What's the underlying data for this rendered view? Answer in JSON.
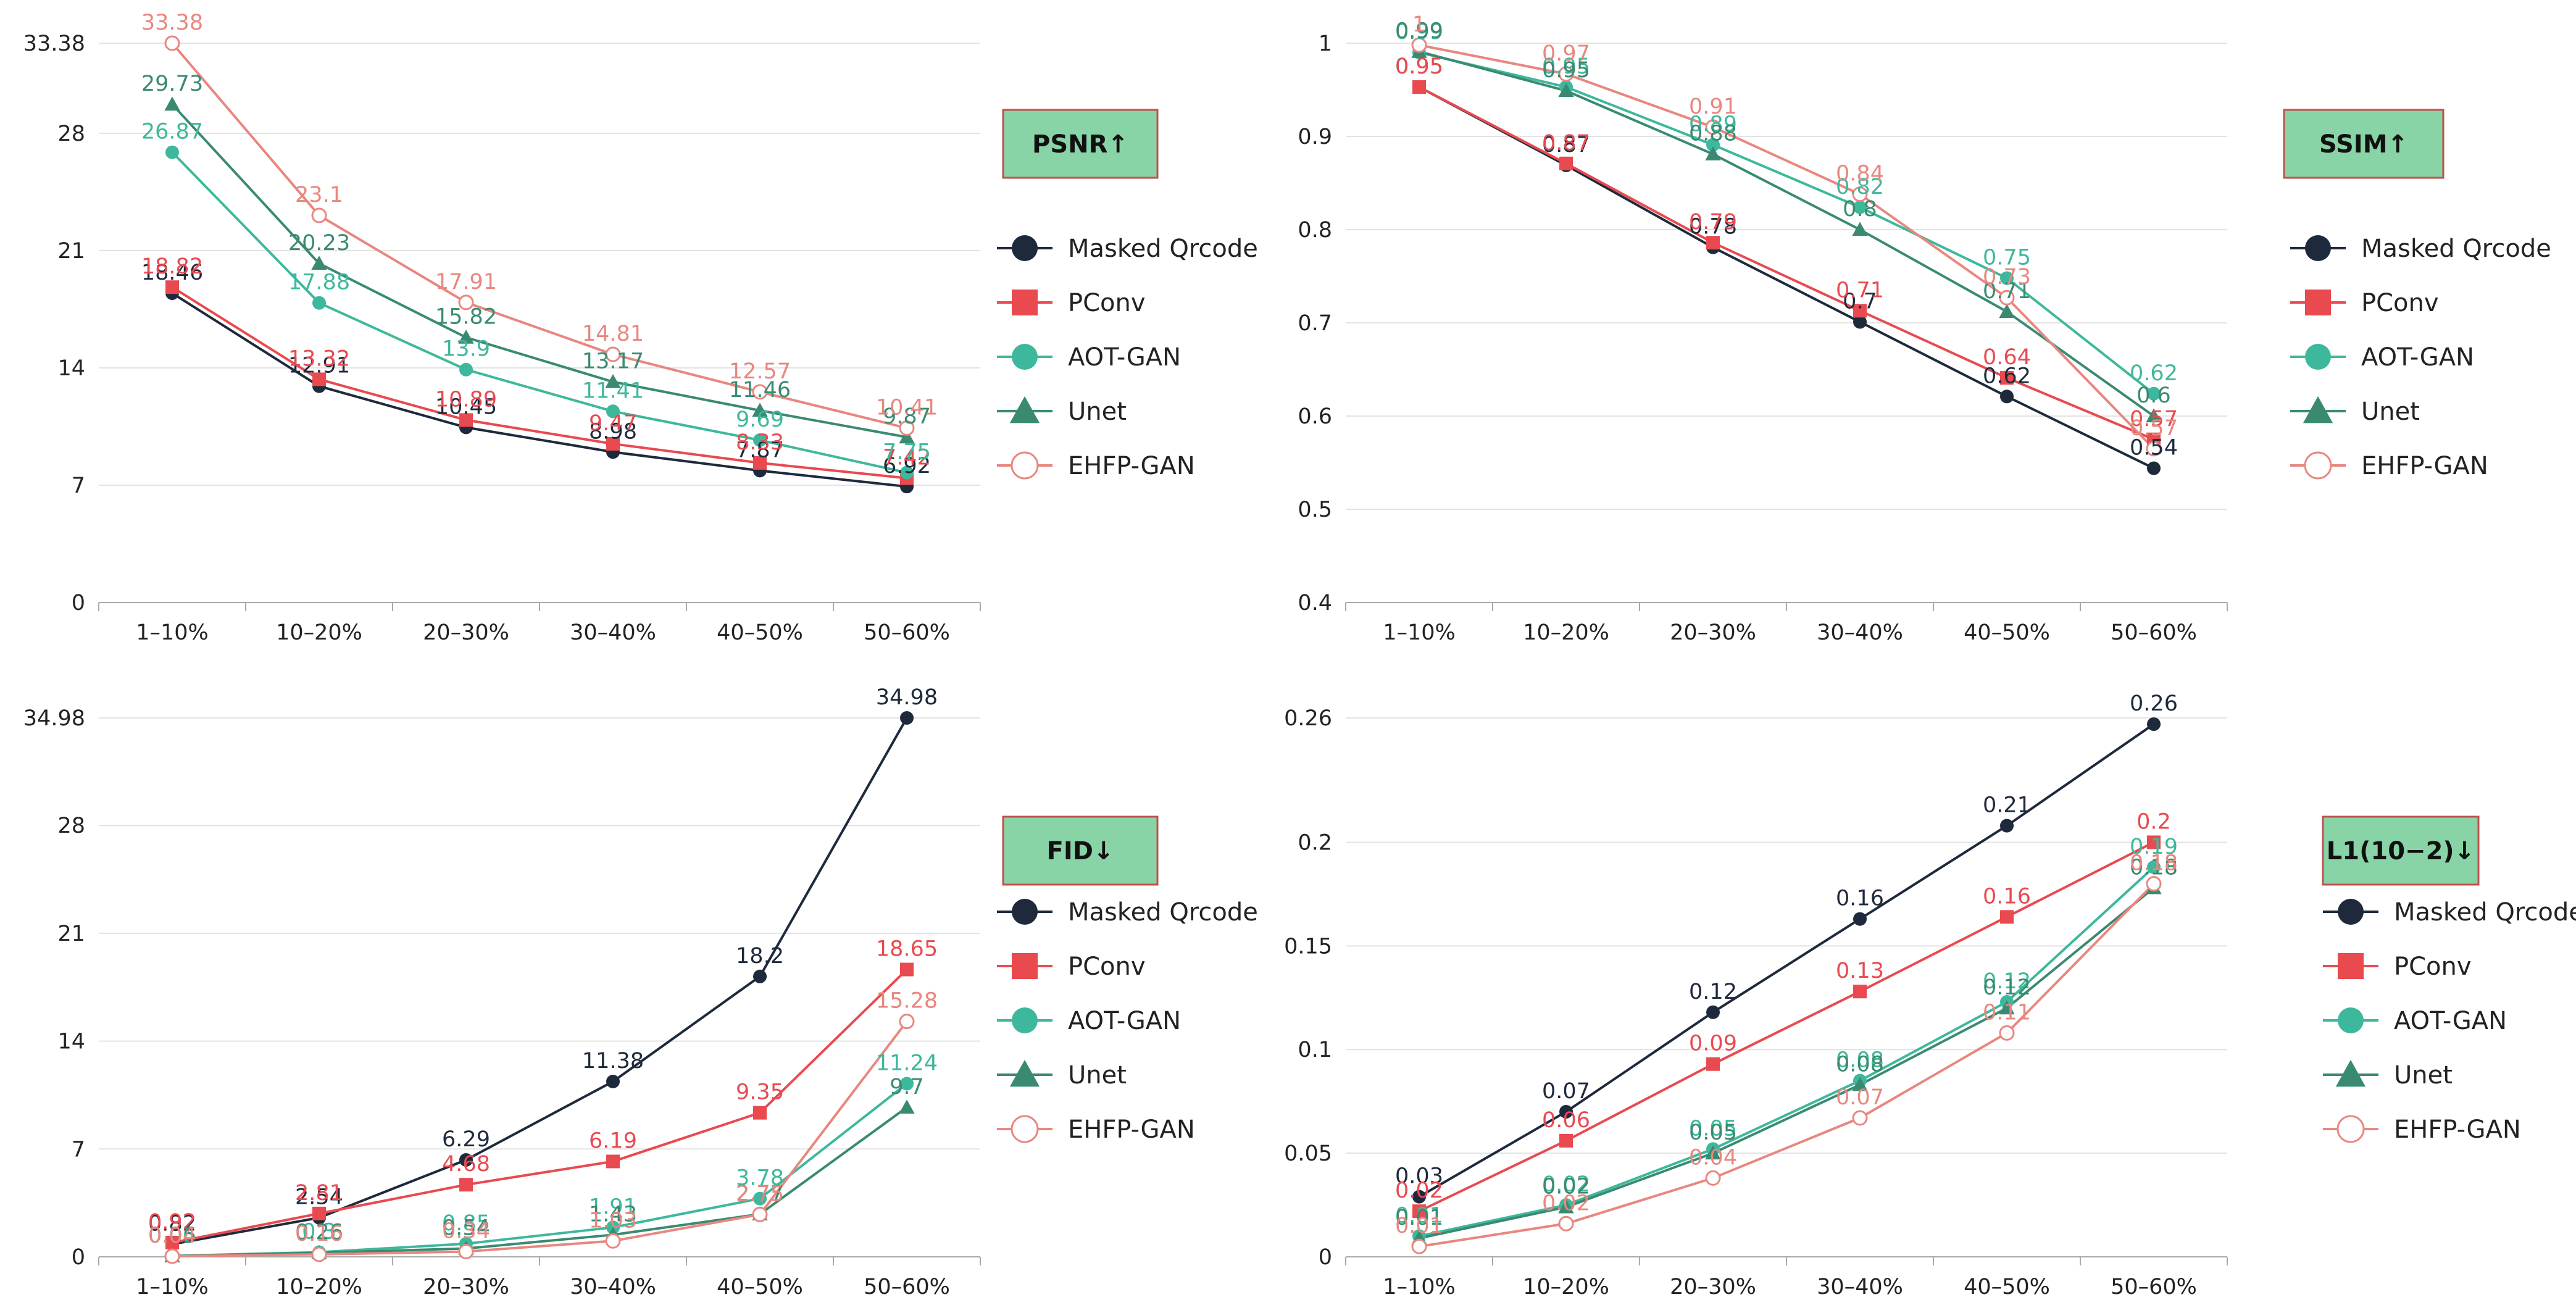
{
  "colors": {
    "Masked Qrcode": "#1e2a3c",
    "PConv": "#e84a50",
    "AOT-GAN": "#3eb89c",
    "Unet": "#3a8a72",
    "EHFP-GAN": "#e8877f",
    "badge_fill": "#88d4a6",
    "badge_border": "#c0504d"
  },
  "chart_data": [
    {
      "id": "psnr",
      "type": "line",
      "title": "PSNR↑",
      "categories": [
        "1–10%",
        "10–20%",
        "20–30%",
        "30–40%",
        "40–50%",
        "50–60%"
      ],
      "ylim": [
        0,
        33.38
      ],
      "yticks": [
        0,
        7,
        14,
        21,
        28,
        33.38
      ],
      "grid": true,
      "legend": "right",
      "series": [
        {
          "name": "Masked Qrcode",
          "marker": "circle",
          "values": [
            18.46,
            12.91,
            10.45,
            8.98,
            7.87,
            6.92
          ],
          "labels": [
            "18.46",
            "12.91",
            "10.45",
            "8.98",
            "7.87",
            "6.92"
          ]
        },
        {
          "name": "PConv",
          "marker": "square",
          "values": [
            18.82,
            13.32,
            10.89,
            9.47,
            8.33,
            7.42
          ],
          "labels": [
            "18.82",
            "13.32",
            "10.89",
            "9.47",
            "8.33",
            "7.42"
          ]
        },
        {
          "name": "AOT-GAN",
          "marker": "circle",
          "values": [
            26.87,
            17.88,
            13.9,
            11.41,
            9.69,
            7.75
          ],
          "labels": [
            "26.87",
            "17.88",
            "13.9",
            "11.41",
            "9.69",
            "7.75"
          ]
        },
        {
          "name": "Unet",
          "marker": "triangle",
          "values": [
            29.73,
            20.23,
            15.82,
            13.17,
            11.46,
            9.87
          ],
          "labels": [
            "29.73",
            "20.23",
            "15.82",
            "13.17",
            "11.46",
            "9.87"
          ]
        },
        {
          "name": "EHFP-GAN",
          "marker": "hollow",
          "values": [
            33.38,
            23.1,
            17.91,
            14.81,
            12.57,
            10.41
          ],
          "labels": [
            "33.38",
            "23.1",
            "17.91",
            "14.81",
            "12.57",
            "10.41"
          ]
        }
      ]
    },
    {
      "id": "ssim",
      "type": "line",
      "title": "SSIM↑",
      "categories": [
        "1–10%",
        "10–20%",
        "20–30%",
        "30–40%",
        "40–50%",
        "50–60%"
      ],
      "ylim": [
        0.4,
        1
      ],
      "yticks": [
        0.4,
        0.5,
        0.6,
        0.7,
        0.8,
        0.9,
        1
      ],
      "grid": true,
      "legend": "right",
      "series": [
        {
          "name": "Masked Qrcode",
          "marker": "circle",
          "values": [
            0.953,
            0.869,
            0.781,
            0.701,
            0.621,
            0.544
          ],
          "labels": [
            "0.95",
            "0.87",
            "0.78",
            "0.7",
            "0.62",
            "0.54"
          ]
        },
        {
          "name": "PConv",
          "marker": "square",
          "values": [
            0.953,
            0.871,
            0.786,
            0.713,
            0.641,
            0.575
          ],
          "labels": [
            "0.95",
            "0.87",
            "0.79",
            "0.71",
            "0.64",
            "0.57"
          ]
        },
        {
          "name": "AOT-GAN",
          "marker": "circle",
          "values": [
            0.99,
            0.953,
            0.891,
            0.824,
            0.748,
            0.624
          ],
          "labels": [
            "0.99",
            "0.95",
            "0.89",
            "0.82",
            "0.75",
            "0.62"
          ]
        },
        {
          "name": "Unet",
          "marker": "triangle",
          "values": [
            0.991,
            0.949,
            0.881,
            0.8,
            0.712,
            0.6
          ],
          "labels": [
            "0.99",
            "0.95",
            "0.88",
            "0.8",
            "0.71",
            "0.6"
          ]
        },
        {
          "name": "EHFP-GAN",
          "marker": "hollow",
          "values": [
            0.998,
            0.967,
            0.91,
            0.838,
            0.727,
            0.565
          ],
          "labels": [
            "1",
            "0.97",
            "0.91",
            "0.84",
            "0.73",
            "0.57"
          ]
        }
      ]
    },
    {
      "id": "fid",
      "type": "line",
      "title": "FID↓",
      "categories": [
        "1–10%",
        "10–20%",
        "20–30%",
        "30–40%",
        "40–50%",
        "50–60%"
      ],
      "ylim": [
        0,
        34.98
      ],
      "yticks": [
        0,
        7,
        14,
        21,
        28,
        34.98
      ],
      "grid": true,
      "legend": "right",
      "series": [
        {
          "name": "Masked Qrcode",
          "marker": "circle",
          "values": [
            0.82,
            2.54,
            6.29,
            11.38,
            18.2,
            34.98
          ],
          "labels": [
            "0.82",
            "2.54",
            "6.29",
            "11.38",
            "18.2",
            "34.98"
          ]
        },
        {
          "name": "PConv",
          "marker": "square",
          "values": [
            0.92,
            2.81,
            4.68,
            6.19,
            9.35,
            18.65
          ],
          "labels": [
            "0.92",
            "2.81",
            "4.68",
            "6.19",
            "9.35",
            "18.65"
          ]
        },
        {
          "name": "AOT-GAN",
          "marker": "circle",
          "values": [
            0.06,
            0.3,
            0.85,
            1.91,
            3.78,
            11.24
          ],
          "labels": [
            "0.06",
            "0.3",
            "0.85",
            "1.91",
            "3.78",
            "11.24"
          ]
        },
        {
          "name": "Unet",
          "marker": "triangle",
          "values": [
            0.05,
            0.26,
            0.54,
            1.43,
            2.77,
            9.7
          ],
          "labels": [
            "0.05",
            "0.26",
            "0.54",
            "1.43",
            "2.77",
            "9.7"
          ]
        },
        {
          "name": "EHFP-GAN",
          "marker": "hollow",
          "values": [
            0.04,
            0.16,
            0.34,
            1.03,
            2.75,
            15.28
          ],
          "labels": [
            "0.04",
            "0.16",
            "0.34",
            "1.03",
            "2.75",
            "15.28"
          ]
        }
      ]
    },
    {
      "id": "l1",
      "type": "line",
      "title": "L1(10−2)↓",
      "categories": [
        "1–10%",
        "10–20%",
        "20–30%",
        "30–40%",
        "40–50%",
        "50–60%"
      ],
      "ylim": [
        0,
        0.26
      ],
      "yticks": [
        0,
        0.05,
        0.1,
        0.15,
        0.2,
        0.26
      ],
      "grid": true,
      "legend": "right",
      "series": [
        {
          "name": "Masked Qrcode",
          "marker": "circle",
          "values": [
            0.029,
            0.07,
            0.118,
            0.163,
            0.208,
            0.257
          ],
          "labels": [
            "0.03",
            "0.07",
            "0.12",
            "0.16",
            "0.21",
            "0.26"
          ]
        },
        {
          "name": "PConv",
          "marker": "square",
          "values": [
            0.022,
            0.056,
            0.093,
            0.128,
            0.164,
            0.2
          ],
          "labels": [
            "0.02",
            "0.06",
            "0.09",
            "0.13",
            "0.16",
            "0.2"
          ]
        },
        {
          "name": "AOT-GAN",
          "marker": "circle",
          "values": [
            0.01,
            0.025,
            0.052,
            0.085,
            0.123,
            0.188
          ],
          "labels": [
            "0.01",
            "0.02",
            "0.05",
            "0.08",
            "0.12",
            "0.19"
          ]
        },
        {
          "name": "Unet",
          "marker": "triangle",
          "values": [
            0.009,
            0.024,
            0.05,
            0.083,
            0.12,
            0.178
          ],
          "labels": [
            "0.01",
            "0.02",
            "0.05",
            "0.08",
            "0.12",
            "0.18"
          ]
        },
        {
          "name": "EHFP-GAN",
          "marker": "hollow",
          "values": [
            0.005,
            0.016,
            0.038,
            0.067,
            0.108,
            0.18
          ],
          "labels": [
            "0.01",
            "0.02",
            "0.04",
            "0.07",
            "0.11",
            "0.18"
          ]
        }
      ]
    }
  ]
}
